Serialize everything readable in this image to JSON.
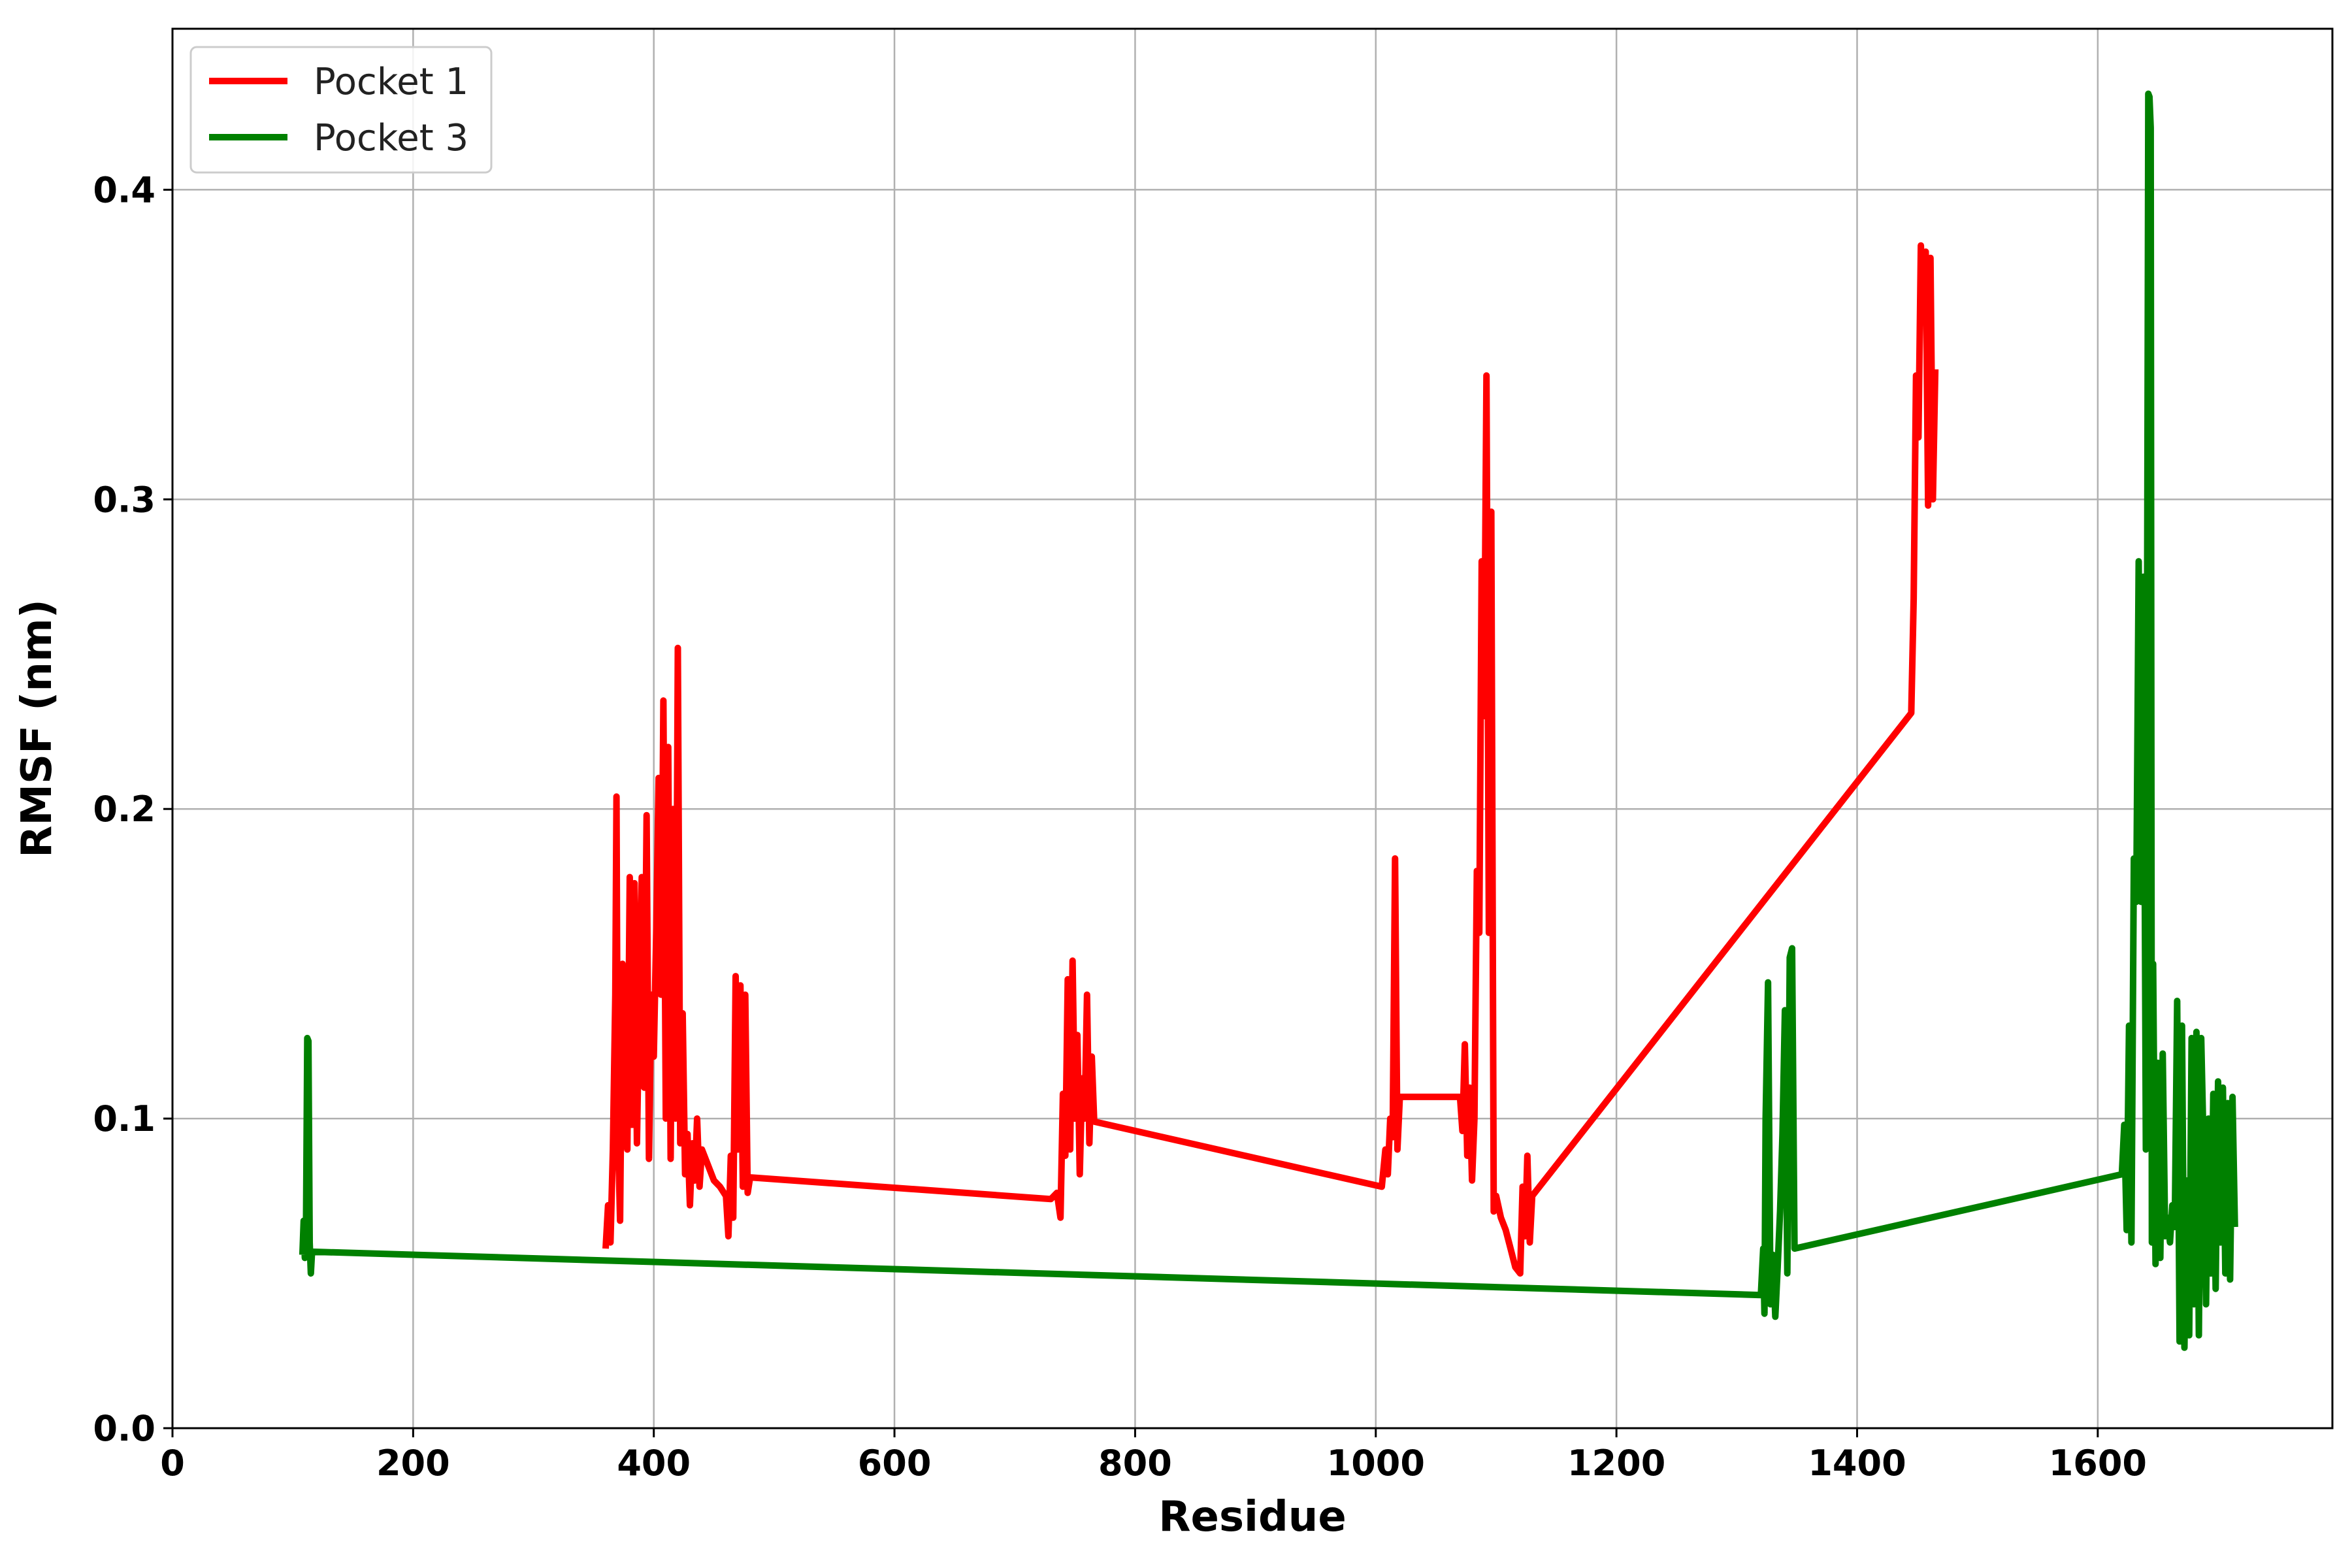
{
  "chart_data": {
    "type": "line",
    "title": "",
    "xlabel": "Residue",
    "ylabel": "RMSF (nm)",
    "xlim": [
      0,
      1795
    ],
    "ylim": [
      0,
      0.452
    ],
    "xticks": [
      0,
      200,
      400,
      600,
      800,
      1000,
      1200,
      1400,
      1600
    ],
    "yticks": [
      0.0,
      0.1,
      0.2,
      0.3,
      0.4
    ],
    "xtick_labels": [
      "0",
      "200",
      "400",
      "600",
      "800",
      "1000",
      "1200",
      "1400",
      "1600"
    ],
    "ytick_labels": [
      "0.0",
      "0.1",
      "0.2",
      "0.3",
      "0.4"
    ],
    "grid": true,
    "legend_position": "top-left",
    "series": [
      {
        "name": "Pocket 1",
        "color": "#ff0000",
        "x": [
          360,
          362,
          364,
          366,
          368,
          369,
          370,
          372,
          374,
          376,
          378,
          380,
          382,
          384,
          386,
          388,
          390,
          392,
          394,
          396,
          398,
          400,
          402,
          404,
          406,
          408,
          410,
          412,
          414,
          416,
          418,
          420,
          422,
          424,
          426,
          428,
          430,
          432,
          434,
          436,
          438,
          440,
          445,
          450,
          455,
          460,
          462,
          464,
          466,
          468,
          470,
          472,
          474,
          476,
          478,
          480,
          730,
          735,
          738,
          740,
          742,
          744,
          746,
          748,
          750,
          752,
          754,
          756,
          758,
          760,
          762,
          764,
          766,
          1005,
          1008,
          1010,
          1012,
          1014,
          1016,
          1018,
          1020,
          1022,
          1024,
          1026,
          1070,
          1072,
          1074,
          1076,
          1078,
          1080,
          1082,
          1084,
          1086,
          1088,
          1090,
          1092,
          1094,
          1096,
          1098,
          1100,
          1104,
          1108,
          1112,
          1116,
          1120,
          1122,
          1124,
          1126,
          1128,
          1130,
          1445,
          1447,
          1449,
          1451,
          1453,
          1455,
          1457,
          1459,
          1461,
          1463,
          1465
        ],
        "y": [
          0.058,
          0.072,
          0.06,
          0.09,
          0.14,
          0.204,
          0.1,
          0.067,
          0.15,
          0.11,
          0.09,
          0.178,
          0.098,
          0.176,
          0.092,
          0.14,
          0.178,
          0.11,
          0.198,
          0.087,
          0.14,
          0.12,
          0.16,
          0.21,
          0.14,
          0.235,
          0.1,
          0.22,
          0.087,
          0.2,
          0.1,
          0.252,
          0.092,
          0.134,
          0.082,
          0.095,
          0.072,
          0.092,
          0.08,
          0.1,
          0.078,
          0.09,
          0.085,
          0.08,
          0.078,
          0.075,
          0.062,
          0.088,
          0.068,
          0.146,
          0.09,
          0.143,
          0.078,
          0.14,
          0.076,
          0.081,
          0.074,
          0.076,
          0.068,
          0.108,
          0.088,
          0.145,
          0.09,
          0.151,
          0.1,
          0.127,
          0.082,
          0.113,
          0.1,
          0.14,
          0.092,
          0.12,
          0.099,
          0.078,
          0.09,
          0.082,
          0.1,
          0.094,
          0.184,
          0.09,
          0.107,
          0.107,
          0.107,
          0.107,
          0.107,
          0.096,
          0.124,
          0.088,
          0.11,
          0.08,
          0.1,
          0.18,
          0.16,
          0.28,
          0.23,
          0.34,
          0.16,
          0.296,
          0.07,
          0.075,
          0.068,
          0.064,
          0.058,
          0.052,
          0.05,
          0.078,
          0.062,
          0.088,
          0.06,
          0.075,
          0.231,
          0.268,
          0.34,
          0.32,
          0.382,
          0.36,
          0.38,
          0.298,
          0.378,
          0.3,
          0.342
        ]
      },
      {
        "name": "Pocket 3",
        "color": "#008000",
        "x": [
          108,
          109,
          110,
          111,
          112,
          113,
          114,
          115,
          116,
          1320,
          1322,
          1323,
          1324,
          1326,
          1328,
          1330,
          1332,
          1334,
          1336,
          1338,
          1340,
          1342,
          1344,
          1346,
          1348,
          1620,
          1622,
          1624,
          1626,
          1628,
          1630,
          1632,
          1634,
          1636,
          1638,
          1640,
          1642,
          1643,
          1644,
          1645,
          1646,
          1648,
          1650,
          1652,
          1654,
          1656,
          1658,
          1660,
          1662,
          1664,
          1666,
          1668,
          1670,
          1672,
          1674,
          1676,
          1678,
          1680,
          1682,
          1684,
          1686,
          1688,
          1690,
          1692,
          1694,
          1696,
          1698,
          1700,
          1702,
          1704,
          1706,
          1708,
          1710,
          1712,
          1714
        ],
        "y": [
          0.056,
          0.067,
          0.055,
          0.065,
          0.126,
          0.125,
          0.06,
          0.05,
          0.057,
          0.043,
          0.058,
          0.037,
          0.1,
          0.144,
          0.04,
          0.056,
          0.036,
          0.052,
          0.07,
          0.095,
          0.135,
          0.05,
          0.152,
          0.155,
          0.058,
          0.082,
          0.098,
          0.064,
          0.13,
          0.06,
          0.184,
          0.17,
          0.28,
          0.17,
          0.275,
          0.09,
          0.431,
          0.43,
          0.42,
          0.06,
          0.15,
          0.053,
          0.118,
          0.055,
          0.121,
          0.062,
          0.068,
          0.06,
          0.072,
          0.065,
          0.138,
          0.028,
          0.13,
          0.026,
          0.08,
          0.03,
          0.126,
          0.04,
          0.128,
          0.03,
          0.126,
          0.09,
          0.04,
          0.1,
          0.05,
          0.108,
          0.045,
          0.112,
          0.06,
          0.11,
          0.05,
          0.105,
          0.048,
          0.107,
          0.065
        ]
      }
    ]
  }
}
